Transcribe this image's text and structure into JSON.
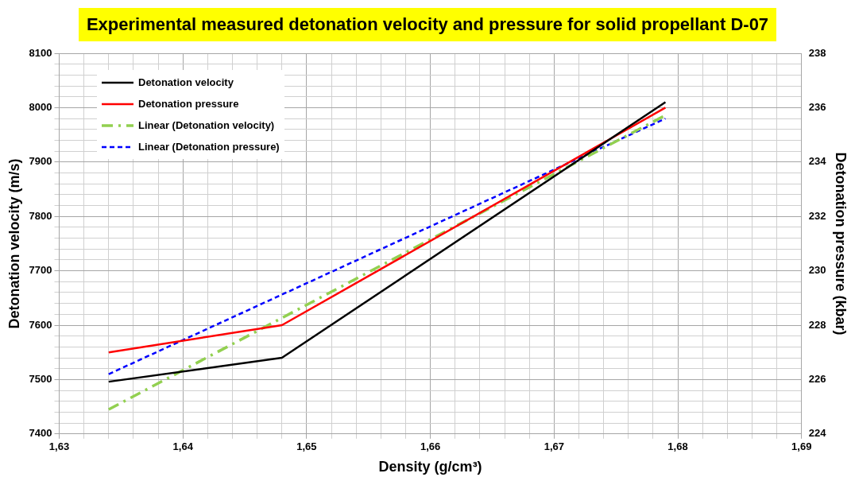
{
  "chart_data": {
    "type": "line",
    "title": "Experimental measured detonation velocity and pressure for solid propellant D-07",
    "xlabel": "Density (g/cm³)",
    "ylabel": "Detonation velocity (m/s)",
    "y2label": "Detonation pressure (kbar)",
    "xlim": [
      1.63,
      1.69
    ],
    "xticks": [
      {
        "value": 1.63,
        "label": "1,63"
      },
      {
        "value": 1.632,
        "label": null
      },
      {
        "value": 1.634,
        "label": null
      },
      {
        "value": 1.636,
        "label": null
      },
      {
        "value": 1.638,
        "label": null
      },
      {
        "value": 1.64,
        "label": "1,64"
      },
      {
        "value": 1.642,
        "label": null
      },
      {
        "value": 1.644,
        "label": null
      },
      {
        "value": 1.646,
        "label": null
      },
      {
        "value": 1.648,
        "label": null
      },
      {
        "value": 1.65,
        "label": "1,65"
      },
      {
        "value": 1.652,
        "label": null
      },
      {
        "value": 1.654,
        "label": null
      },
      {
        "value": 1.656,
        "label": null
      },
      {
        "value": 1.658,
        "label": null
      },
      {
        "value": 1.66,
        "label": "1,66"
      },
      {
        "value": 1.662,
        "label": null
      },
      {
        "value": 1.664,
        "label": null
      },
      {
        "value": 1.666,
        "label": null
      },
      {
        "value": 1.668,
        "label": null
      },
      {
        "value": 1.67,
        "label": "1,67"
      },
      {
        "value": 1.672,
        "label": null
      },
      {
        "value": 1.674,
        "label": null
      },
      {
        "value": 1.676,
        "label": null
      },
      {
        "value": 1.678,
        "label": null
      },
      {
        "value": 1.68,
        "label": "1,68"
      },
      {
        "value": 1.682,
        "label": null
      },
      {
        "value": 1.684,
        "label": null
      },
      {
        "value": 1.686,
        "label": null
      },
      {
        "value": 1.688,
        "label": null
      },
      {
        "value": 1.69,
        "label": "1,69"
      }
    ],
    "ylim": [
      7400,
      8100
    ],
    "yticks": [
      7400,
      {
        "value": 7420,
        "label": null
      },
      {
        "value": 7440,
        "label": null
      },
      {
        "value": 7460,
        "label": null
      },
      {
        "value": 7480,
        "label": null
      },
      7500,
      {
        "value": 7520,
        "label": null
      },
      {
        "value": 7540,
        "label": null
      },
      {
        "value": 7560,
        "label": null
      },
      {
        "value": 7580,
        "label": null
      },
      7600,
      {
        "value": 7620,
        "label": null
      },
      {
        "value": 7640,
        "label": null
      },
      {
        "value": 7660,
        "label": null
      },
      {
        "value": 7680,
        "label": null
      },
      7700,
      {
        "value": 7720,
        "label": null
      },
      {
        "value": 7740,
        "label": null
      },
      {
        "value": 7760,
        "label": null
      },
      {
        "value": 7780,
        "label": null
      },
      7800,
      {
        "value": 7820,
        "label": null
      },
      {
        "value": 7840,
        "label": null
      },
      {
        "value": 7860,
        "label": null
      },
      {
        "value": 7880,
        "label": null
      },
      7900,
      {
        "value": 7920,
        "label": null
      },
      {
        "value": 7940,
        "label": null
      },
      {
        "value": 7960,
        "label": null
      },
      {
        "value": 7980,
        "label": null
      },
      8000,
      {
        "value": 8020,
        "label": null
      },
      {
        "value": 8040,
        "label": null
      },
      {
        "value": 8060,
        "label": null
      },
      {
        "value": 8080,
        "label": null
      },
      8100
    ],
    "y2lim": [
      224,
      238
    ],
    "y2ticks": [
      224,
      226,
      228,
      230,
      232,
      234,
      236,
      238
    ],
    "grid": true,
    "legend": "top left",
    "marker": "none",
    "series": [
      {
        "name": "Detonation velocity",
        "color": "#000000",
        "x": [
          1.634,
          1.648,
          1.679
        ],
        "values": [
          7496,
          7540,
          8010
        ],
        "line_style": "solid"
      },
      {
        "name": "Detonation pressure",
        "color": "#ff0000",
        "x": [
          1.634,
          1.648,
          1.679
        ],
        "values": [
          227,
          228,
          236
        ],
        "axis": "y2",
        "line_style": "solid"
      },
      {
        "name": "Linear (Detonation velocity)",
        "color": "#92d050",
        "x": [
          1.634,
          1.679
        ],
        "values": [
          7445,
          7986
        ],
        "line_style": "dashdot"
      },
      {
        "name": "Linear (Detonation pressure)",
        "color": "#0000ff",
        "x": [
          1.634,
          1.679
        ],
        "values": [
          226.2,
          235.6
        ],
        "axis": "y2",
        "line_style": "dashed"
      }
    ]
  }
}
